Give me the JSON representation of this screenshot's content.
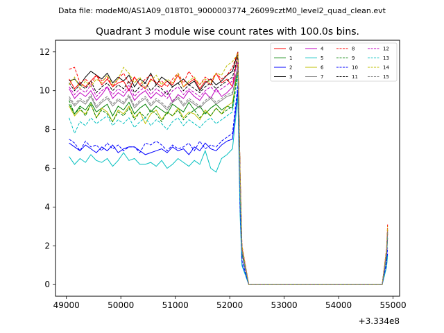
{
  "chart_data": {
    "type": "line",
    "suptitle": "Data file: modeM0/AS1A09_018T01_9000003774_26099cztM0_level2_quad_clean.evt",
    "title": "Quadrant 3 module wise count rates with 100.0s bins.",
    "xlabel": "",
    "ylabel": "",
    "x_offset_label": "+3.334e8",
    "xlim": [
      48800,
      55120
    ],
    "ylim": [
      -0.6,
      12.6
    ],
    "x_ticks": [
      49000,
      50000,
      51000,
      52000,
      53000,
      54000,
      55000
    ],
    "x_tick_labels": [
      "49000",
      "50000",
      "51000",
      "52000",
      "53000",
      "54000",
      "55000"
    ],
    "y_ticks": [
      0,
      2,
      4,
      6,
      8,
      10,
      12
    ],
    "y_tick_labels": [
      "0",
      "2",
      "4",
      "6",
      "8",
      "10",
      "12"
    ],
    "legend_position": "top-right",
    "legend_columns": 4,
    "x_start": 49050,
    "bin": 100,
    "drop_start": 52250,
    "recover_at": 54850,
    "series": [
      {
        "name": "0",
        "color": "#ff0000",
        "dash": false,
        "level": 10.3,
        "peak": 11.9,
        "end": 2.9,
        "values": [
          10.6,
          10.1,
          10.4,
          10.2,
          10.5,
          10.8,
          10.3,
          10.6,
          10.2,
          10.4,
          10.5,
          10.0,
          10.7,
          10.3,
          10.1,
          10.6,
          10.4,
          10.2,
          10.5,
          10.3,
          10.8,
          10.2,
          10.4,
          10.6,
          10.1,
          10.5,
          10.3,
          10.9,
          10.4,
          10.6,
          10.2,
          11.9
        ]
      },
      {
        "name": "1",
        "color": "#008000",
        "dash": false,
        "level": 9.1,
        "peak": 11.4,
        "end": 2.7,
        "values": [
          9.3,
          8.8,
          9.2,
          9.0,
          9.4,
          8.9,
          9.1,
          9.3,
          8.7,
          9.2,
          9.0,
          9.4,
          8.8,
          9.1,
          9.3,
          8.9,
          9.2,
          9.0,
          8.8,
          9.3,
          9.1,
          8.9,
          9.4,
          9.0,
          9.2,
          8.8,
          9.1,
          9.3,
          9.0,
          9.2,
          9.1,
          11.4
        ]
      },
      {
        "name": "2",
        "color": "#0000ff",
        "dash": false,
        "level": 7.0,
        "peak": 10.0,
        "end": 1.6,
        "values": [
          7.3,
          7.1,
          6.9,
          7.2,
          7.0,
          6.8,
          7.1,
          6.9,
          7.2,
          6.8,
          7.0,
          7.1,
          7.1,
          6.9,
          6.7,
          6.8,
          6.9,
          7.0,
          6.8,
          7.1,
          6.9,
          7.0,
          6.7,
          7.1,
          6.9,
          7.3,
          7.0,
          6.9,
          7.2,
          7.4,
          7.5,
          10.0
        ]
      },
      {
        "name": "3",
        "color": "#000000",
        "dash": false,
        "level": 10.4,
        "peak": 12.0,
        "end": 2.4,
        "values": [
          10.5,
          10.6,
          10.3,
          10.7,
          11.0,
          10.8,
          10.6,
          10.9,
          10.4,
          10.7,
          10.5,
          10.8,
          10.2,
          10.6,
          10.4,
          10.9,
          10.3,
          10.7,
          10.5,
          10.2,
          10.4,
          10.6,
          10.3,
          10.5,
          10.0,
          10.4,
          10.6,
          10.3,
          10.5,
          10.8,
          11.0,
          12.0
        ]
      },
      {
        "name": "4",
        "color": "#bf00bf",
        "dash": false,
        "level": 9.8,
        "peak": 11.2,
        "end": 2.6,
        "values": [
          10.1,
          9.6,
          9.9,
          9.7,
          10.0,
          9.5,
          9.8,
          10.2,
          9.6,
          9.9,
          9.7,
          10.1,
          9.5,
          9.8,
          10.0,
          9.6,
          9.9,
          9.7,
          10.0,
          9.4,
          9.8,
          9.6,
          10.0,
          9.7,
          9.5,
          9.9,
          9.6,
          10.1,
          9.7,
          9.9,
          10.2,
          11.2
        ]
      },
      {
        "name": "5",
        "color": "#00bfbf",
        "dash": false,
        "level": 6.4,
        "peak": 9.7,
        "end": 1.5,
        "values": [
          6.6,
          6.2,
          6.5,
          6.3,
          6.7,
          6.4,
          6.3,
          6.5,
          6.1,
          6.4,
          6.8,
          6.4,
          6.5,
          6.2,
          6.2,
          6.3,
          6.1,
          6.4,
          6.0,
          6.2,
          6.5,
          6.3,
          6.1,
          6.4,
          6.2,
          6.9,
          6.0,
          5.8,
          6.5,
          6.7,
          7.0,
          9.7
        ]
      },
      {
        "name": "6",
        "color": "#bfbf00",
        "dash": false,
        "level": 9.0,
        "peak": 11.0,
        "end": 2.8,
        "values": [
          9.2,
          8.7,
          9.0,
          8.8,
          9.3,
          8.6,
          9.1,
          8.9,
          8.4,
          9.0,
          8.8,
          9.2,
          8.6,
          8.9,
          8.3,
          8.8,
          9.0,
          8.5,
          8.9,
          8.7,
          9.1,
          8.6,
          8.9,
          8.8,
          8.5,
          9.0,
          8.7,
          9.1,
          8.8,
          9.2,
          9.4,
          11.0
        ]
      },
      {
        "name": "7",
        "color": "#808080",
        "dash": false,
        "level": 9.4,
        "peak": 11.3,
        "end": 2.7,
        "values": [
          9.6,
          9.2,
          9.5,
          9.3,
          9.7,
          9.1,
          9.4,
          9.6,
          9.2,
          9.5,
          9.3,
          9.7,
          9.1,
          9.4,
          9.6,
          9.2,
          9.5,
          9.3,
          9.0,
          9.4,
          9.6,
          9.2,
          9.5,
          9.3,
          9.1,
          9.4,
          9.6,
          9.3,
          9.5,
          9.7,
          9.8,
          11.3
        ]
      },
      {
        "name": "8",
        "color": "#ff0000",
        "dash": true,
        "level": 10.6,
        "peak": 12.0,
        "end": 3.1,
        "values": [
          11.1,
          11.2,
          10.4,
          10.6,
          10.3,
          10.8,
          10.5,
          10.7,
          10.2,
          10.6,
          10.9,
          10.4,
          10.7,
          10.3,
          10.6,
          10.8,
          10.4,
          10.5,
          10.2,
          10.6,
          10.9,
          10.4,
          11.0,
          10.6,
          10.3,
          10.7,
          10.5,
          10.9,
          10.6,
          10.8,
          11.2,
          12.0
        ]
      },
      {
        "name": "9",
        "color": "#008000",
        "dash": true,
        "level": 8.9,
        "peak": 11.0,
        "end": 2.6,
        "values": [
          9.5,
          8.8,
          9.1,
          8.7,
          9.3,
          8.6,
          9.0,
          8.8,
          8.4,
          8.9,
          8.7,
          9.1,
          8.5,
          8.9,
          8.6,
          9.0,
          8.8,
          8.4,
          8.9,
          8.7,
          9.0,
          8.5,
          8.8,
          9.0,
          8.6,
          8.9,
          8.7,
          9.1,
          8.8,
          9.0,
          9.2,
          11.0
        ]
      },
      {
        "name": "10",
        "color": "#0000ff",
        "dash": true,
        "level": 7.1,
        "peak": 10.3,
        "end": 1.9,
        "values": [
          7.5,
          7.3,
          6.9,
          7.4,
          7.1,
          7.2,
          6.9,
          7.3,
          7.0,
          7.2,
          6.9,
          7.1,
          7.1,
          6.8,
          7.3,
          7.2,
          7.4,
          7.2,
          6.9,
          7.2,
          7.0,
          7.1,
          7.3,
          6.9,
          7.4,
          7.0,
          7.2,
          7.1,
          7.4,
          7.6,
          7.8,
          10.3
        ]
      },
      {
        "name": "11",
        "color": "#000000",
        "dash": true,
        "level": 10.2,
        "peak": 11.8,
        "end": 2.8,
        "values": [
          10.4,
          10.0,
          10.3,
          10.1,
          10.5,
          9.9,
          10.2,
          10.4,
          10.0,
          10.3,
          10.1,
          10.5,
          9.9,
          10.2,
          10.4,
          10.0,
          10.3,
          10.1,
          9.8,
          10.2,
          10.4,
          10.0,
          10.3,
          10.1,
          9.9,
          10.2,
          10.4,
          10.1,
          10.3,
          10.5,
          10.7,
          11.8
        ]
      },
      {
        "name": "12",
        "color": "#bf00bf",
        "dash": true,
        "level": 10.0,
        "peak": 11.5,
        "end": 2.9,
        "values": [
          10.2,
          9.8,
          10.1,
          9.9,
          10.3,
          9.7,
          10.0,
          10.2,
          9.8,
          10.1,
          9.9,
          10.3,
          9.7,
          10.0,
          10.2,
          9.8,
          10.1,
          9.9,
          9.6,
          10.0,
          10.2,
          9.8,
          10.1,
          9.9,
          9.7,
          10.0,
          10.2,
          9.9,
          10.1,
          10.3,
          10.5,
          11.5
        ]
      },
      {
        "name": "13",
        "color": "#00bfbf",
        "dash": true,
        "level": 8.4,
        "peak": 10.8,
        "end": 2.5,
        "values": [
          8.6,
          7.8,
          8.4,
          8.2,
          8.6,
          8.3,
          8.5,
          8.7,
          8.2,
          8.5,
          8.3,
          8.6,
          8.1,
          8.4,
          8.6,
          8.2,
          8.5,
          8.3,
          8.0,
          8.4,
          8.6,
          8.2,
          8.5,
          8.3,
          8.1,
          8.4,
          8.6,
          8.3,
          8.5,
          8.7,
          8.9,
          10.8
        ]
      },
      {
        "name": "14",
        "color": "#bfbf00",
        "dash": true,
        "level": 10.5,
        "peak": 11.9,
        "end": 3.0,
        "values": [
          10.3,
          10.7,
          10.1,
          10.5,
          10.2,
          10.6,
          10.4,
          10.8,
          10.3,
          10.6,
          11.2,
          10.9,
          10.4,
          10.7,
          10.1,
          10.5,
          10.8,
          10.3,
          10.6,
          10.4,
          10.9,
          10.2,
          10.5,
          10.7,
          10.3,
          10.6,
          10.4,
          10.9,
          10.8,
          11.3,
          11.5,
          11.9
        ]
      },
      {
        "name": "15",
        "color": "#808080",
        "dash": true,
        "level": 9.5,
        "peak": 11.1,
        "end": 2.7,
        "values": [
          9.7,
          9.3,
          9.6,
          9.4,
          9.8,
          9.2,
          9.5,
          9.7,
          9.3,
          9.6,
          9.4,
          9.8,
          9.2,
          9.5,
          9.7,
          9.3,
          9.6,
          9.4,
          9.1,
          9.5,
          9.7,
          9.3,
          9.6,
          9.4,
          9.2,
          9.5,
          9.7,
          9.4,
          9.6,
          9.8,
          9.9,
          11.1
        ]
      }
    ]
  }
}
